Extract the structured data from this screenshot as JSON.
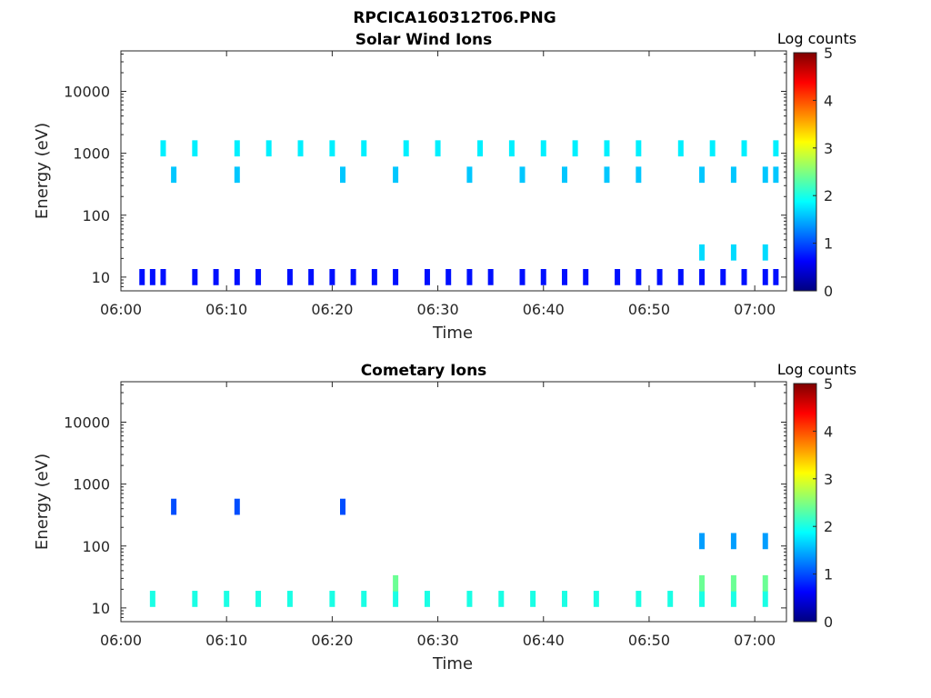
{
  "figure_title": "RPCICA160312T06.PNG",
  "colors": {
    "axis": "#262626",
    "colormap_anchors": [
      "#00007f",
      "#0000ff",
      "#00ffff",
      "#ffff00",
      "#ff0000",
      "#7f0000"
    ]
  },
  "chart_data": [
    {
      "type": "heatmap",
      "title": "Solar Wind Ions",
      "xlabel": "Time",
      "ylabel": "Energy (eV)",
      "y_scale": "log",
      "xlim": [
        "06:00",
        "07:03"
      ],
      "ylim": [
        6,
        45000
      ],
      "x_ticks": [
        "06:00",
        "06:10",
        "06:20",
        "06:30",
        "06:40",
        "06:50",
        "07:00"
      ],
      "y_ticks": [
        10,
        100,
        1000,
        10000
      ],
      "y_tick_labels": [
        "10",
        "100",
        "1000",
        "10000"
      ],
      "colorbar": {
        "label": "Log counts",
        "range": [
          0,
          5
        ],
        "ticks": [
          "0",
          "1",
          "2",
          "3",
          "4",
          "5"
        ],
        "colormap": "jet"
      },
      "bands": [
        {
          "energy": 450,
          "times": [
            "06:05",
            "06:11",
            "06:21",
            "06:26",
            "06:33",
            "06:38",
            "06:42",
            "06:46",
            "06:49",
            "06:55",
            "06:58",
            "07:01",
            "07:02"
          ],
          "level": 1.6
        },
        {
          "energy": 1200,
          "times": [
            "06:04",
            "06:07",
            "06:11",
            "06:14",
            "06:17",
            "06:20",
            "06:23",
            "06:27",
            "06:30",
            "06:34",
            "06:37",
            "06:40",
            "06:43",
            "06:46",
            "06:49",
            "06:53",
            "06:56",
            "06:59",
            "07:02"
          ],
          "level": 1.8
        },
        {
          "energy": 10,
          "times": [
            "06:02",
            "06:03",
            "06:04",
            "06:07",
            "06:09",
            "06:11",
            "06:13",
            "06:16",
            "06:18",
            "06:20",
            "06:22",
            "06:24",
            "06:26",
            "06:29",
            "06:31",
            "06:33",
            "06:35",
            "06:38",
            "06:40",
            "06:42",
            "06:44",
            "06:47",
            "06:49",
            "06:51",
            "06:53",
            "06:55",
            "06:57",
            "06:59",
            "07:01",
            "07:02"
          ],
          "level": 0.7
        },
        {
          "energy": 25,
          "times": [
            "06:55",
            "06:58",
            "07:01"
          ],
          "level": 1.7
        }
      ]
    },
    {
      "type": "heatmap",
      "title": "Cometary Ions",
      "xlabel": "Time",
      "ylabel": "Energy (eV)",
      "y_scale": "log",
      "xlim": [
        "06:00",
        "07:03"
      ],
      "ylim": [
        6,
        45000
      ],
      "x_ticks": [
        "06:00",
        "06:10",
        "06:20",
        "06:30",
        "06:40",
        "06:50",
        "07:00"
      ],
      "y_ticks": [
        10,
        100,
        1000,
        10000
      ],
      "y_tick_labels": [
        "10",
        "100",
        "1000",
        "10000"
      ],
      "colorbar": {
        "label": "Log counts",
        "range": [
          0,
          5
        ],
        "ticks": [
          "0",
          "1",
          "2",
          "3",
          "4",
          "5"
        ],
        "colormap": "jet"
      },
      "bands": [
        {
          "energy": 14,
          "times": [
            "06:03",
            "06:07",
            "06:10",
            "06:13",
            "06:16",
            "06:20",
            "06:23",
            "06:26",
            "06:29",
            "06:33",
            "06:36",
            "06:39",
            "06:42",
            "06:45",
            "06:49",
            "06:52",
            "06:55",
            "06:58",
            "07:01"
          ],
          "level": 2.0
        },
        {
          "energy": 25,
          "times": [
            "06:26",
            "06:55",
            "06:58",
            "07:01"
          ],
          "level": 2.4
        },
        {
          "energy": 430,
          "times": [
            "06:05",
            "06:11",
            "06:21"
          ],
          "level": 1.0
        },
        {
          "energy": 120,
          "times": [
            "06:55",
            "06:58",
            "07:01"
          ],
          "level": 1.4
        }
      ]
    }
  ]
}
